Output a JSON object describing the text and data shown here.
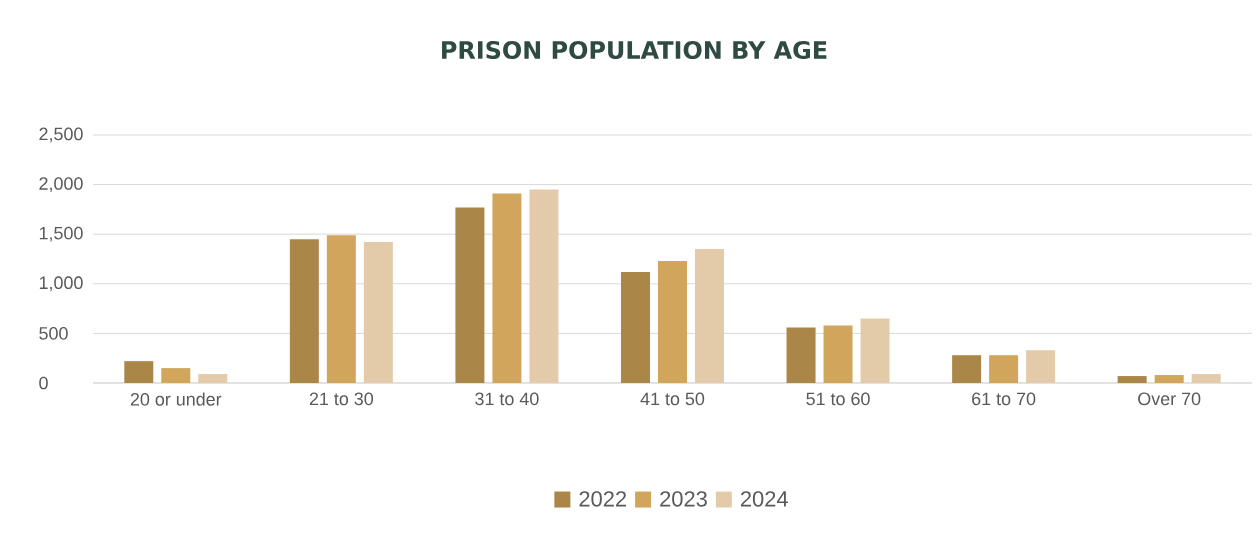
{
  "chart_data": {
    "type": "bar",
    "title": "PRISON POPULATION BY AGE",
    "categories": [
      "20 or under",
      "21 to 30",
      "31 to 40",
      "41 to 50",
      "51 to 60",
      "61 to 70",
      "Over 70"
    ],
    "series": [
      {
        "name": "2022",
        "color": "#ab8649",
        "values": [
          220,
          1450,
          1770,
          1120,
          560,
          280,
          70
        ]
      },
      {
        "name": "2023",
        "color": "#d1a65c",
        "values": [
          150,
          1490,
          1910,
          1230,
          580,
          280,
          80
        ]
      },
      {
        "name": "2024",
        "color": "#e3cbaa",
        "values": [
          90,
          1420,
          1950,
          1350,
          650,
          330,
          90
        ]
      }
    ],
    "ylim": [
      0,
      2500
    ],
    "yticks": [
      0,
      500,
      {
        "value": 1000,
        "label": "1,000"
      },
      {
        "value": 1500,
        "label": "1,500"
      },
      {
        "value": 2000,
        "label": "2,000"
      },
      {
        "value": 2500,
        "label": "2,500"
      }
    ],
    "grid": "y",
    "legend": "bottom"
  }
}
